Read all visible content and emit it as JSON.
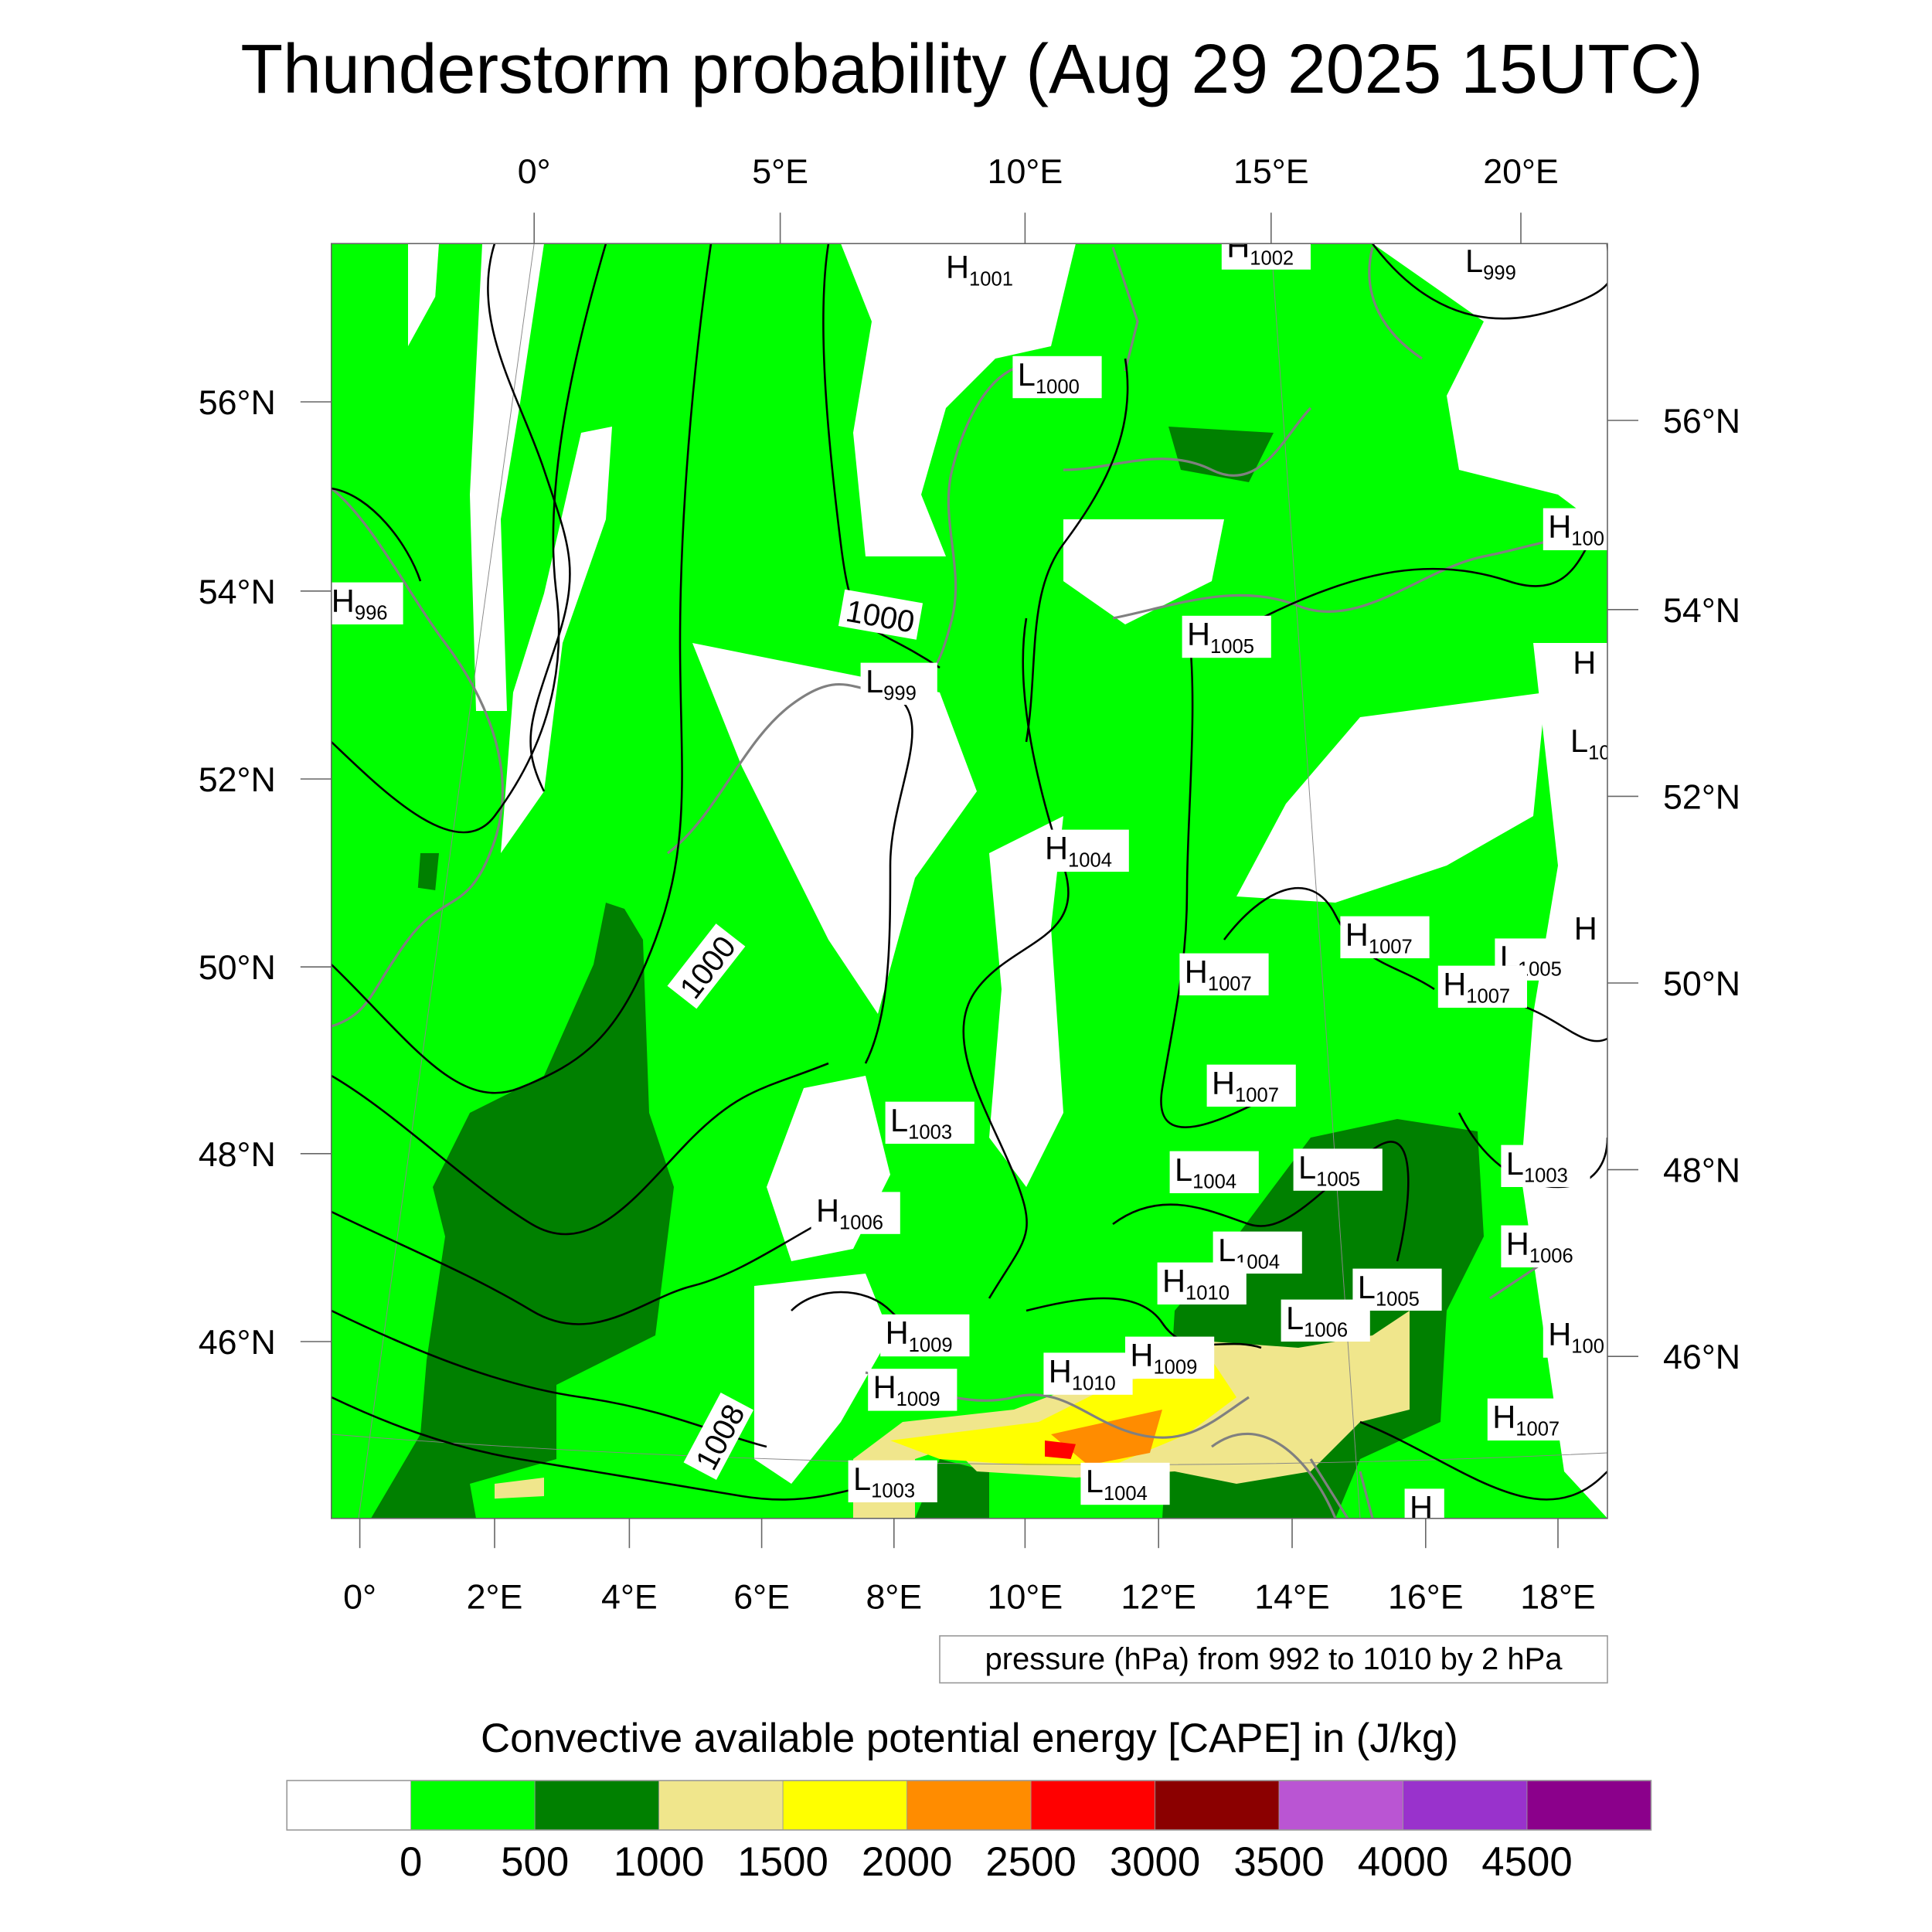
{
  "title": "Thunderstorm probability (Aug 29 2025 15UTC)",
  "axes": {
    "top": [
      "0°",
      "5°E",
      "10°E",
      "15°E",
      "20°E"
    ],
    "bottom": [
      "0°",
      "2°E",
      "4°E",
      "6°E",
      "8°E",
      "10°E",
      "12°E",
      "14°E",
      "16°E",
      "18°E"
    ],
    "left": [
      "56°N",
      "54°N",
      "52°N",
      "50°N",
      "48°N",
      "46°N"
    ],
    "right": [
      "56°N",
      "54°N",
      "52°N",
      "50°N",
      "48°N",
      "46°N"
    ]
  },
  "pressure_centers": [
    {
      "type": "H",
      "value": "1001"
    },
    {
      "type": "H",
      "value": "1002"
    },
    {
      "type": "L",
      "value": "999"
    },
    {
      "type": "H",
      "value": "996"
    },
    {
      "type": "L",
      "value": "1000"
    },
    {
      "type": "H",
      "value": "100"
    },
    {
      "type": "H",
      "value": "1005"
    },
    {
      "type": "L",
      "value": "999"
    },
    {
      "type": "H",
      "value": ""
    },
    {
      "type": "L",
      "value": "10"
    },
    {
      "type": "H",
      "value": "1004"
    },
    {
      "type": "H",
      "value": "1007"
    },
    {
      "type": "L",
      "value": "1005"
    },
    {
      "type": "H",
      "value": "1007"
    },
    {
      "type": "H",
      "value": ""
    },
    {
      "type": "H",
      "value": "1007"
    },
    {
      "type": "H",
      "value": "1007"
    },
    {
      "type": "L",
      "value": "1003"
    },
    {
      "type": "L",
      "value": "1004"
    },
    {
      "type": "L",
      "value": "1005"
    },
    {
      "type": "L",
      "value": "1003"
    },
    {
      "type": "H",
      "value": "1006"
    },
    {
      "type": "L",
      "value": "1004"
    },
    {
      "type": "H",
      "value": "1006"
    },
    {
      "type": "H",
      "value": "1010"
    },
    {
      "type": "L",
      "value": "1005"
    },
    {
      "type": "L",
      "value": "1006"
    },
    {
      "type": "H",
      "value": "1009"
    },
    {
      "type": "H",
      "value": "1009"
    },
    {
      "type": "H",
      "value": "1010"
    },
    {
      "type": "H",
      "value": "1009"
    },
    {
      "type": "H",
      "value": "100"
    },
    {
      "type": "H",
      "value": "1007"
    },
    {
      "type": "L",
      "value": "1003"
    },
    {
      "type": "L",
      "value": "1004"
    },
    {
      "type": "H",
      "value": ""
    }
  ],
  "contour_labels": [
    "1000",
    "1000",
    "1008"
  ],
  "contour_info": "pressure (hPa) from 992 to 1010 by 2 hPa",
  "colorbar": {
    "title": "Convective available potential energy [CAPE] in (J/kg)",
    "colors": [
      "#ffffff",
      "#00ff00",
      "#008000",
      "#f0e68c",
      "#ffff00",
      "#ff8c00",
      "#ff0000",
      "#8b0000",
      "#ba55d3",
      "#9932cc",
      "#8b008b"
    ],
    "labels": [
      "0",
      "500",
      "1000",
      "1500",
      "2000",
      "2500",
      "3000",
      "3500",
      "4000",
      "4500"
    ]
  }
}
